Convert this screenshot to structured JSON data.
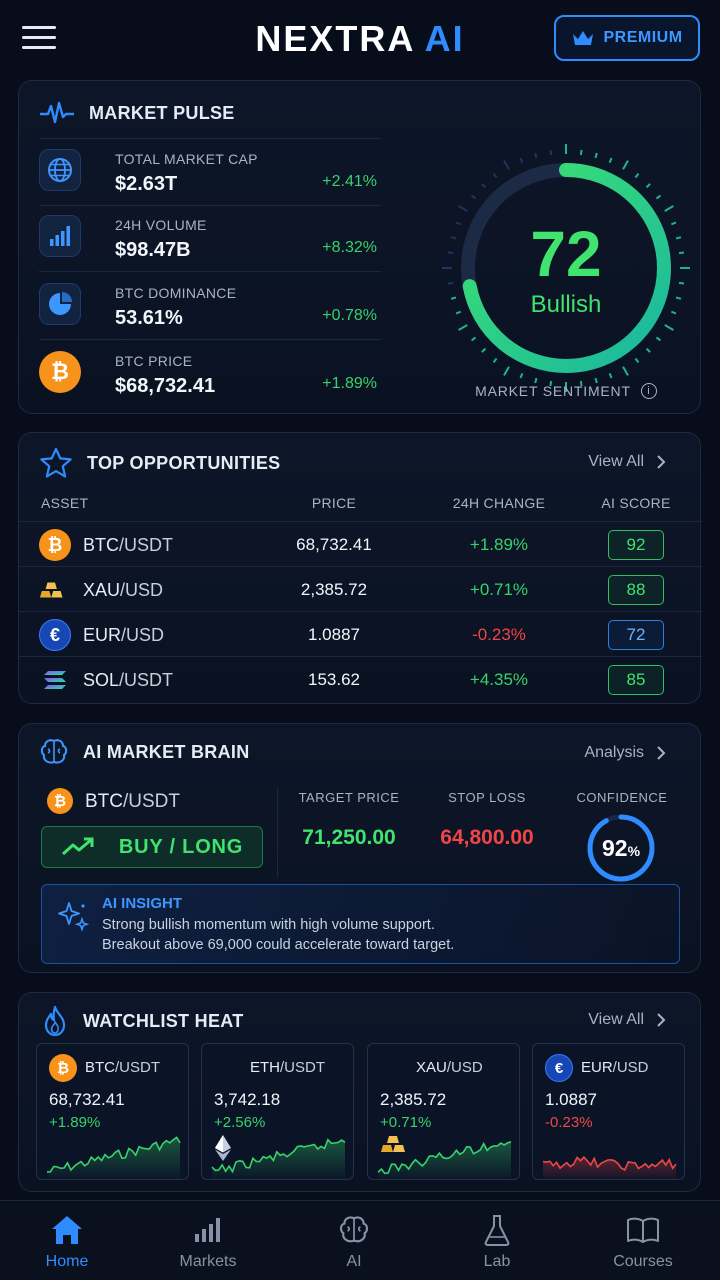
{
  "header": {
    "brand_main": "NEXTRA",
    "brand_accent": "AI",
    "premium_label": "PREMIUM"
  },
  "market_pulse": {
    "title": "MARKET PULSE",
    "rows": [
      {
        "label": "TOTAL MARKET CAP",
        "value": "$2.63T",
        "change": "+2.41%",
        "icon": "globe-icon"
      },
      {
        "label": "24H VOLUME",
        "value": "$98.47B",
        "change": "+8.32%",
        "icon": "bar-chart-icon"
      },
      {
        "label": "BTC DOMINANCE",
        "value": "53.61%",
        "change": "+0.78%",
        "icon": "pie-chart-icon"
      },
      {
        "label": "BTC PRICE",
        "value": "$68,732.41",
        "change": "+1.89%",
        "icon": "bitcoin-icon"
      }
    ],
    "sentiment": {
      "score": "72",
      "score_fraction": 0.72,
      "label": "Bullish",
      "caption": "MARKET SENTIMENT"
    }
  },
  "top_opportunities": {
    "title": "TOP OPPORTUNITIES",
    "view_all": "View All",
    "columns": [
      "ASSET",
      "PRICE",
      "24H CHANGE",
      "AI SCORE"
    ],
    "rows": [
      {
        "base": "BTC",
        "quote": "/USDT",
        "price": "68,732.41",
        "change": "+1.89%",
        "score": "92",
        "icon": "bitcoin-icon"
      },
      {
        "base": "XAU",
        "quote": "/USD",
        "price": "2,385.72",
        "change": "+0.71%",
        "score": "88",
        "icon": "gold-bars-icon"
      },
      {
        "base": "EUR",
        "quote": "/USD",
        "price": "1.0887",
        "change": "-0.23%",
        "score": "72",
        "icon": "euro-icon"
      },
      {
        "base": "SOL",
        "quote": "/USDT",
        "price": "153.62",
        "change": "+4.35%",
        "score": "85",
        "icon": "solana-icon"
      }
    ]
  },
  "ai_brain": {
    "title": "AI MARKET BRAIN",
    "analysis_label": "Analysis",
    "pair_base": "BTC",
    "pair_quote": "/USDT",
    "action_label": "BUY / LONG",
    "target_label": "TARGET PRICE",
    "target_value": "71,250.00",
    "stop_label": "STOP LOSS",
    "stop_value": "64,800.00",
    "confidence_label": "CONFIDENCE",
    "confidence_value": "92",
    "confidence_unit": "%",
    "confidence_fraction": 0.92,
    "insight_title": "AI INSIGHT",
    "insight_line1": "Strong bullish momentum with high volume support.",
    "insight_line2": "Breakout above 69,000 could accelerate toward target."
  },
  "watchlist": {
    "title": "WATCHLIST HEAT",
    "view_all": "View All",
    "items": [
      {
        "base": "BTC",
        "quote": "/USDT",
        "price": "68,732.41",
        "change": "+1.89%",
        "trend": "up",
        "icon": "bitcoin-icon"
      },
      {
        "base": "ETH",
        "quote": "/USDT",
        "price": "3,742.18",
        "change": "+2.56%",
        "trend": "up",
        "icon": "ethereum-icon"
      },
      {
        "base": "XAU",
        "quote": "/USD",
        "price": "2,385.72",
        "change": "+0.71%",
        "trend": "up",
        "icon": "gold-bars-icon"
      },
      {
        "base": "EUR",
        "quote": "/USD",
        "price": "1.0887",
        "change": "-0.23%",
        "trend": "down",
        "icon": "euro-icon"
      }
    ]
  },
  "nav": {
    "items": [
      {
        "label": "Home",
        "icon": "home-icon",
        "active": true
      },
      {
        "label": "Markets",
        "icon": "bar-chart-icon",
        "active": false
      },
      {
        "label": "AI",
        "icon": "brain-icon",
        "active": false
      },
      {
        "label": "Lab",
        "icon": "flask-icon",
        "active": false
      },
      {
        "label": "Courses",
        "icon": "book-icon",
        "active": false
      }
    ]
  },
  "colors": {
    "accent": "#2f8cff",
    "positive": "#36d26b",
    "negative": "#f04646",
    "bitcoin": "#f7931a",
    "background": "#070d1a"
  }
}
